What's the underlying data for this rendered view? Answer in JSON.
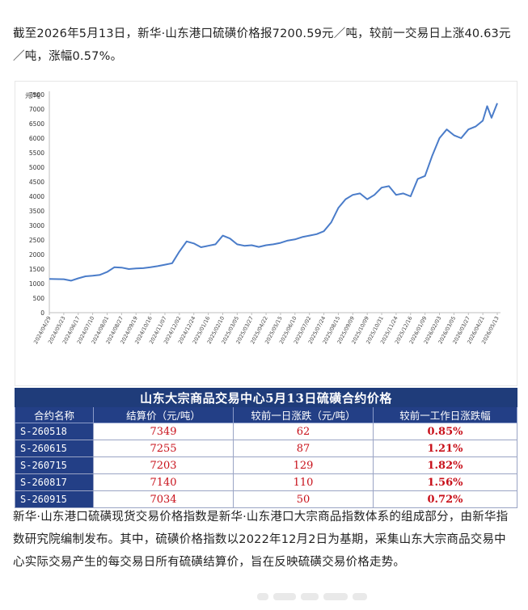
{
  "intro_text": "截至2026年5月13日，新华·山东港口硫磺价格报7200.59元／吨，较前一交易日上涨40.63元／吨，涨幅0.57%。",
  "outro_text": "新华·山东港口硫磺现货交易价格指数是新华·山东港口大宗商品指数体系的组成部分，由新华指数研究院编制发布。其中，硫磺价格指数以2022年12月2日为基期，采集山东大宗商品交易中心实际交易产生的每交易日所有硫磺结算价，旨在反映硫磺交易价格走势。",
  "chart_data": {
    "type": "line",
    "title": "",
    "ylabel": "元/吨",
    "xlabel": "",
    "ylim": [
      0,
      7500
    ],
    "yticks": [
      0,
      500,
      1000,
      1500,
      2000,
      2500,
      3000,
      3500,
      4000,
      4500,
      5000,
      5500,
      6000,
      6500,
      7000,
      7500
    ],
    "xtick_labels": [
      "2024/04/29",
      "2024/05/23",
      "2024/06/17",
      "2024/07/10",
      "2024/08/01",
      "2024/08/27",
      "2024/09/19",
      "2024/10/16",
      "2024/11/07",
      "2024/12/02",
      "2024/12/24",
      "2025/01/16",
      "2025/02/10",
      "2025/03/05",
      "2025/03/27",
      "2025/04/22",
      "2025/05/15",
      "2025/06/10",
      "2025/07/02",
      "2025/07/24",
      "2025/08/15",
      "2025/09/09",
      "2025/10/09",
      "2025/10/31",
      "2025/11/24",
      "2025/12/16",
      "2026/01/09",
      "2026/02/03",
      "2026/03/05",
      "2026/03/27",
      "2026/04/21",
      "2026/05/13"
    ],
    "series": [
      {
        "color": "#4a7cc9",
        "x_index": [
          0,
          1,
          1.5,
          2,
          2.5,
          3,
          3.5,
          4,
          4.5,
          5,
          5.5,
          6,
          6.5,
          7,
          7.5,
          8,
          8.5,
          9,
          9.5,
          10,
          10.5,
          11,
          11.5,
          12,
          12.5,
          13,
          13.5,
          14,
          14.5,
          15,
          15.5,
          16,
          16.5,
          17,
          17.5,
          18,
          18.5,
          19,
          19.5,
          20,
          20.5,
          21,
          21.5,
          22,
          22.5,
          23,
          23.5,
          24,
          24.5,
          25,
          25.5,
          26,
          26.5,
          27,
          27.5,
          28,
          28.5,
          29,
          29.5,
          30,
          30.3,
          30.6,
          31
        ],
        "values": [
          1160,
          1150,
          1100,
          1180,
          1250,
          1270,
          1300,
          1400,
          1560,
          1550,
          1500,
          1520,
          1530,
          1560,
          1600,
          1650,
          1700,
          2100,
          2450,
          2380,
          2250,
          2300,
          2350,
          2650,
          2550,
          2350,
          2300,
          2320,
          2260,
          2320,
          2350,
          2400,
          2480,
          2520,
          2600,
          2650,
          2700,
          2800,
          3100,
          3600,
          3900,
          4050,
          4100,
          3900,
          4050,
          4300,
          4350,
          4050,
          4100,
          4000,
          4600,
          4700,
          5400,
          6000,
          6300,
          6100,
          6000,
          6300,
          6400,
          6600,
          7100,
          6700,
          7200
        ]
      }
    ],
    "grid": false,
    "legend": "none"
  },
  "table": {
    "title": "山东大宗商品交易中心5月13日硫磺合约价格",
    "headers": [
      "合约名称",
      "结算价（元/吨）",
      "较前一日涨跌（元/吨）",
      "较前一工作日涨跌幅"
    ],
    "rows": [
      {
        "code": "S-260518",
        "price": "7349",
        "change": "62",
        "pct": "0.85%"
      },
      {
        "code": "S-260615",
        "price": "7255",
        "change": "87",
        "pct": "1.21%"
      },
      {
        "code": "S-260715",
        "price": "7203",
        "change": "129",
        "pct": "1.82%"
      },
      {
        "code": "S-260817",
        "price": "7140",
        "change": "110",
        "pct": "1.56%"
      },
      {
        "code": "S-260915",
        "price": "7034",
        "change": "50",
        "pct": "0.72%"
      }
    ]
  }
}
